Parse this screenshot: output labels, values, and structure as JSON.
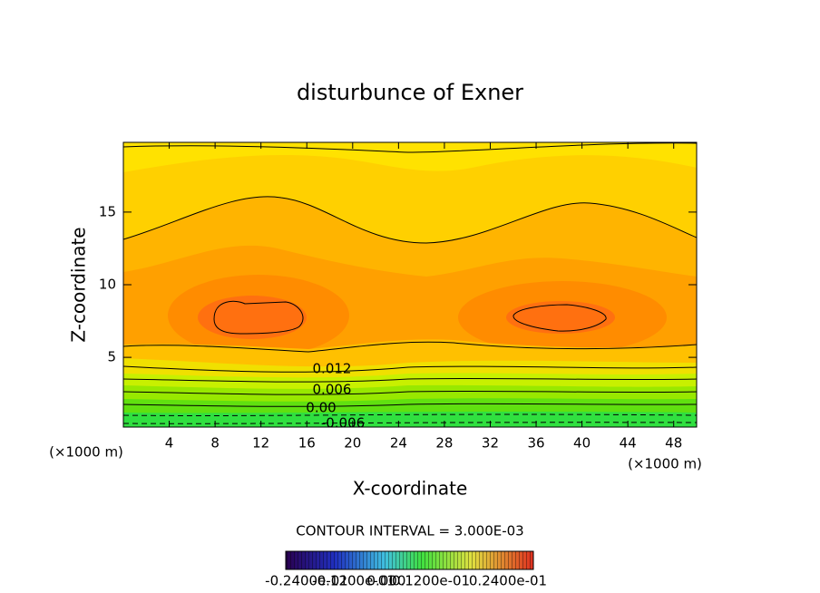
{
  "chart_data": {
    "type": "contour",
    "title": "disturbunce of Exner",
    "x_label": "X-coordinate",
    "y_label": "Z-coordinate",
    "x_unit_left": "(×1000 m)",
    "x_unit_right": "(×1000 m)",
    "xlim": [
      0,
      50
    ],
    "ylim": [
      0.2,
      19.8
    ],
    "xticks": [
      4,
      8,
      12,
      16,
      20,
      24,
      28,
      32,
      36,
      40,
      44,
      48
    ],
    "yticks": [
      5,
      10,
      15
    ],
    "contour_labels": [
      "0.012",
      "0.006",
      "0.00",
      "-0.006"
    ],
    "contour_interval": "CONTOUR INTERVAL = 3.000E-03",
    "colorbar_labels": [
      "-0.2400e-01",
      "-0.1200e-01",
      "0.000",
      "0.1200e-01",
      "0.2400e-01"
    ]
  }
}
